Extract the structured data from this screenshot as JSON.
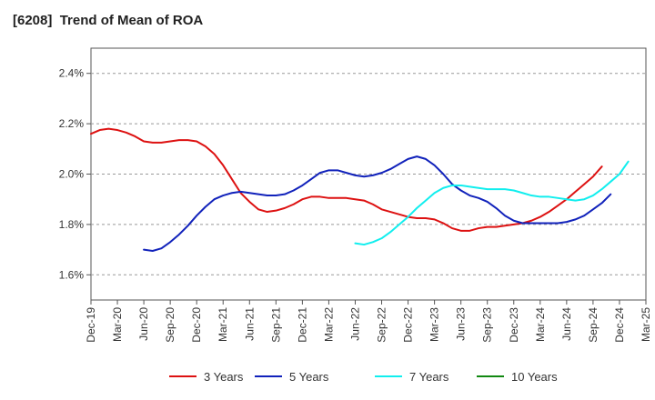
{
  "title": "[6208]  Trend of Mean of ROA",
  "chart_data": {
    "type": "line",
    "title": "[6208]  Trend of Mean of ROA",
    "xlabel": "",
    "ylabel": "",
    "ylim": [
      1.5,
      2.5
    ],
    "yticks": [
      1.6,
      1.8,
      2.0,
      2.2,
      2.4
    ],
    "ytick_labels": [
      "1.6%",
      "1.8%",
      "2.0%",
      "2.2%",
      "2.4%"
    ],
    "xticks": [
      "Dec-19",
      "Mar-20",
      "Jun-20",
      "Sep-20",
      "Dec-20",
      "Mar-21",
      "Jun-21",
      "Sep-21",
      "Dec-21",
      "Mar-22",
      "Jun-22",
      "Sep-22",
      "Dec-22",
      "Mar-23",
      "Jun-23",
      "Sep-23",
      "Dec-23",
      "Mar-24",
      "Jun-24",
      "Sep-24",
      "Dec-24",
      "Mar-25"
    ],
    "grid": "horizontal dashed",
    "legend_position": "bottom",
    "series": [
      {
        "name": "3 Years",
        "color": "#dd1111",
        "start_index": 0,
        "values": [
          2.16,
          2.175,
          2.18,
          2.175,
          2.165,
          2.15,
          2.13,
          2.125,
          2.125,
          2.13,
          2.135,
          2.135,
          2.13,
          2.11,
          2.08,
          2.035,
          1.98,
          1.925,
          1.89,
          1.86,
          1.85,
          1.855,
          1.865,
          1.88,
          1.9,
          1.91,
          1.91,
          1.905,
          1.905,
          1.905,
          1.9,
          1.895,
          1.88,
          1.86,
          1.85,
          1.84,
          1.83,
          1.825,
          1.825,
          1.82,
          1.805,
          1.785,
          1.775,
          1.775,
          1.785,
          1.79,
          1.79,
          1.795,
          1.8,
          1.805,
          1.815,
          1.83,
          1.85,
          1.875,
          1.9,
          1.93,
          1.96,
          1.99,
          2.03
        ]
      },
      {
        "name": "5 Years",
        "color": "#1122bb",
        "start_index": 6,
        "values": [
          1.7,
          1.695,
          1.705,
          1.73,
          1.76,
          1.795,
          1.835,
          1.87,
          1.9,
          1.915,
          1.925,
          1.93,
          1.925,
          1.92,
          1.915,
          1.915,
          1.92,
          1.935,
          1.955,
          1.98,
          2.005,
          2.015,
          2.015,
          2.005,
          1.995,
          1.99,
          1.995,
          2.005,
          2.02,
          2.04,
          2.06,
          2.07,
          2.06,
          2.035,
          2.0,
          1.96,
          1.935,
          1.915,
          1.905,
          1.89,
          1.865,
          1.835,
          1.815,
          1.805,
          1.805,
          1.805,
          1.805,
          1.805,
          1.81,
          1.82,
          1.835,
          1.86,
          1.885,
          1.92
        ]
      },
      {
        "name": "7 Years",
        "color": "#11eeee",
        "start_index": 30,
        "values": [
          1.725,
          1.72,
          1.73,
          1.745,
          1.77,
          1.8,
          1.83,
          1.865,
          1.895,
          1.925,
          1.945,
          1.955,
          1.955,
          1.95,
          1.945,
          1.94,
          1.94,
          1.94,
          1.935,
          1.925,
          1.915,
          1.91,
          1.91,
          1.905,
          1.9,
          1.895,
          1.9,
          1.915,
          1.94,
          1.97,
          2.0,
          2.05
        ]
      },
      {
        "name": "10 Years",
        "color": "#118811",
        "start_index": 0,
        "values": []
      }
    ]
  }
}
